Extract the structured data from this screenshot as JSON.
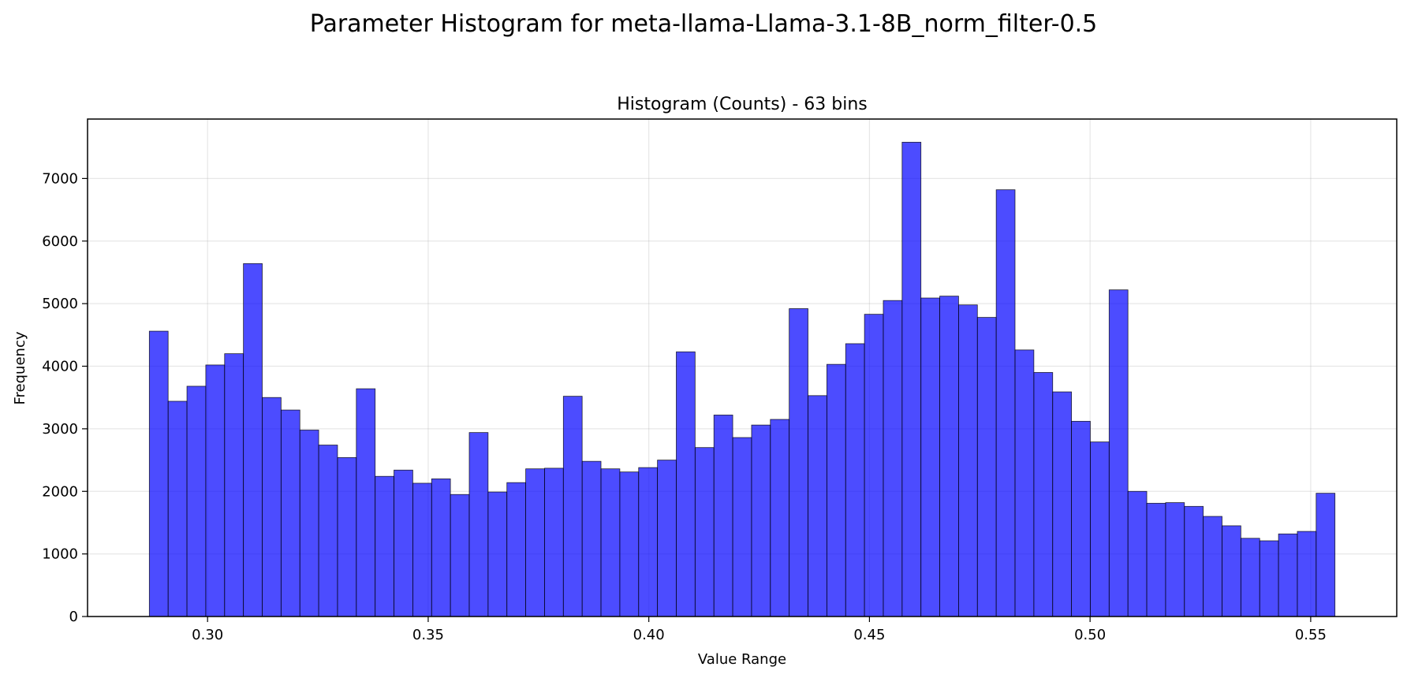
{
  "chart_data": {
    "type": "bar",
    "suptitle": "Parameter Histogram for meta-llama-Llama-3.1-8B_norm_filter-0.5",
    "title": "Histogram (Counts) - 63 bins",
    "xlabel": "Value Range",
    "ylabel": "Frequency",
    "xlim": [
      0.2728,
      0.5695
    ],
    "ylim": [
      0,
      7950
    ],
    "grid": true,
    "bar_color": "#0000ff",
    "bin_range": [
      0.2868,
      0.5555
    ],
    "x_ticks": [
      0.3,
      0.35,
      0.4,
      0.45,
      0.5,
      0.55
    ],
    "x_tick_labels": [
      "0.30",
      "0.35",
      "0.40",
      "0.45",
      "0.50",
      "0.55"
    ],
    "y_ticks": [
      0,
      1000,
      2000,
      3000,
      4000,
      5000,
      6000,
      7000
    ],
    "y_tick_labels": [
      "0",
      "1000",
      "2000",
      "3000",
      "4000",
      "5000",
      "6000",
      "7000"
    ],
    "values": [
      4560,
      3440,
      3680,
      4020,
      4200,
      5640,
      3500,
      3300,
      2980,
      2740,
      2540,
      3640,
      2240,
      2340,
      2130,
      2200,
      1950,
      2940,
      1990,
      2140,
      2360,
      2370,
      3520,
      2480,
      2360,
      2310,
      2380,
      2500,
      4230,
      2700,
      3220,
      2860,
      3060,
      3150,
      4920,
      3530,
      4030,
      4360,
      4830,
      5050,
      7580,
      5090,
      5120,
      4980,
      4780,
      6820,
      4260,
      3900,
      3590,
      3120,
      2790,
      5220,
      2000,
      1810,
      1820,
      1760,
      1600,
      1450,
      1250,
      1210,
      1320,
      1360,
      1970
    ]
  }
}
